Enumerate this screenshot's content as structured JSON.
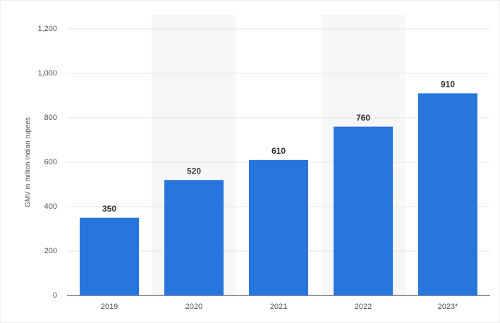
{
  "chart_data": {
    "type": "bar",
    "y_label": "GMV in million Indian rupees",
    "categories": [
      "2019",
      "2020",
      "2021",
      "2022",
      "2023*"
    ],
    "values": [
      350,
      520,
      610,
      760,
      910
    ],
    "color": "#2876dd",
    "ylim": [
      0,
      1200
    ],
    "yticks": [
      0,
      200,
      400,
      600,
      800,
      {
        "value": 1000,
        "label": "1,000"
      },
      {
        "value": 1200,
        "label": "1,200"
      }
    ],
    "grid": true
  }
}
